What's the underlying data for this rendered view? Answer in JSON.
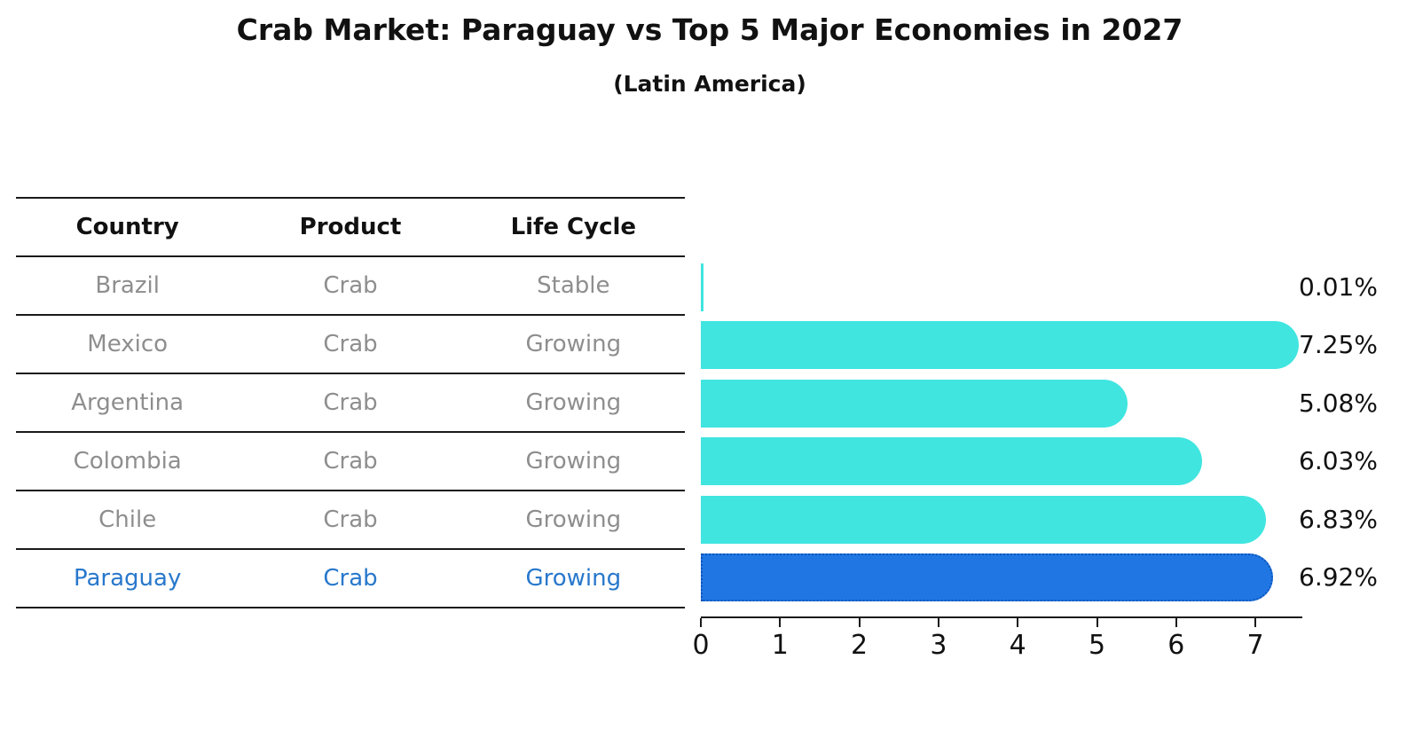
{
  "title": "Crab Market: Paraguay vs Top 5 Major Economies in 2027",
  "subtitle": "(Latin America)",
  "table": {
    "headers": [
      "Country",
      "Product",
      "Life Cycle"
    ],
    "rows": [
      {
        "country": "Brazil",
        "product": "Crab",
        "life_cycle": "Stable",
        "highlight": false
      },
      {
        "country": "Mexico",
        "product": "Crab",
        "life_cycle": "Growing",
        "highlight": false
      },
      {
        "country": "Argentina",
        "product": "Crab",
        "life_cycle": "Growing",
        "highlight": false
      },
      {
        "country": "Colombia",
        "product": "Crab",
        "life_cycle": "Growing",
        "highlight": false
      },
      {
        "country": "Chile",
        "product": "Crab",
        "life_cycle": "Growing",
        "highlight": false
      },
      {
        "country": "Paraguay",
        "product": "Crab",
        "life_cycle": "Growing",
        "highlight": true
      }
    ]
  },
  "chart_data": {
    "type": "bar",
    "orientation": "horizontal",
    "categories": [
      "Brazil",
      "Mexico",
      "Argentina",
      "Colombia",
      "Chile",
      "Paraguay"
    ],
    "values": [
      0.01,
      7.25,
      5.08,
      6.03,
      6.83,
      6.92
    ],
    "value_labels": [
      "0.01%",
      "7.25%",
      "5.08%",
      "6.03%",
      "6.83%",
      "6.92%"
    ],
    "highlight_index": 5,
    "x_ticks": [
      "0",
      "1",
      "2",
      "3",
      "4",
      "5",
      "6",
      "7"
    ],
    "xlim": [
      0,
      7.6
    ],
    "grid": false,
    "legend": "none",
    "colors": {
      "bar": "#40E5E0",
      "highlight_bar": "#2077E4",
      "highlight_border": "#1055B8",
      "highlight_text": "#2878CC",
      "table_text": "#8e8e8e",
      "header_text": "#111111",
      "axis": "#1a1a1a"
    }
  }
}
